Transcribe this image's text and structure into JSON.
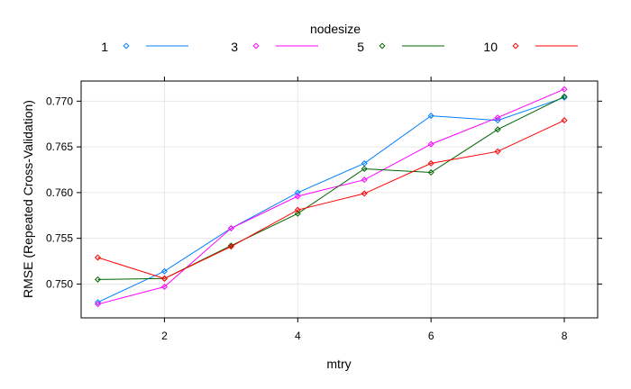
{
  "chart_data": {
    "type": "line",
    "title": "",
    "xlabel": "mtry",
    "ylabel": "RMSE (Repeated Cross-Validation)",
    "xlim": [
      0.75,
      8.5
    ],
    "ylim": [
      0.7463,
      0.7722
    ],
    "x_ticks": [
      "2",
      "4",
      "6",
      "8"
    ],
    "x_tick_values": [
      2,
      4,
      6,
      8
    ],
    "y_ticks": [
      "0.750",
      "0.755",
      "0.760",
      "0.765",
      "0.770"
    ],
    "y_tick_values": [
      0.75,
      0.755,
      0.76,
      0.765,
      0.77
    ],
    "grid": true,
    "legend_title": "nodesize",
    "legend_position": "top",
    "x": [
      1,
      2,
      3,
      4,
      5,
      6,
      7,
      8
    ],
    "series": [
      {
        "name": "1",
        "color": "#0080ff",
        "values": [
          0.748,
          0.7514,
          0.7561,
          0.76,
          0.7632,
          0.7684,
          0.7679,
          0.7704
        ]
      },
      {
        "name": "3",
        "color": "#ff00ff",
        "values": [
          0.7478,
          0.7497,
          0.7561,
          0.7596,
          0.7614,
          0.7653,
          0.7682,
          0.7713
        ]
      },
      {
        "name": "5",
        "color": "#006400",
        "values": [
          0.7505,
          0.7506,
          0.7542,
          0.7577,
          0.7626,
          0.7622,
          0.7669,
          0.7705
        ]
      },
      {
        "name": "10",
        "color": "#ff0000",
        "values": [
          0.7529,
          0.7506,
          0.7541,
          0.7581,
          0.7599,
          0.7632,
          0.7645,
          0.7679
        ]
      }
    ]
  }
}
